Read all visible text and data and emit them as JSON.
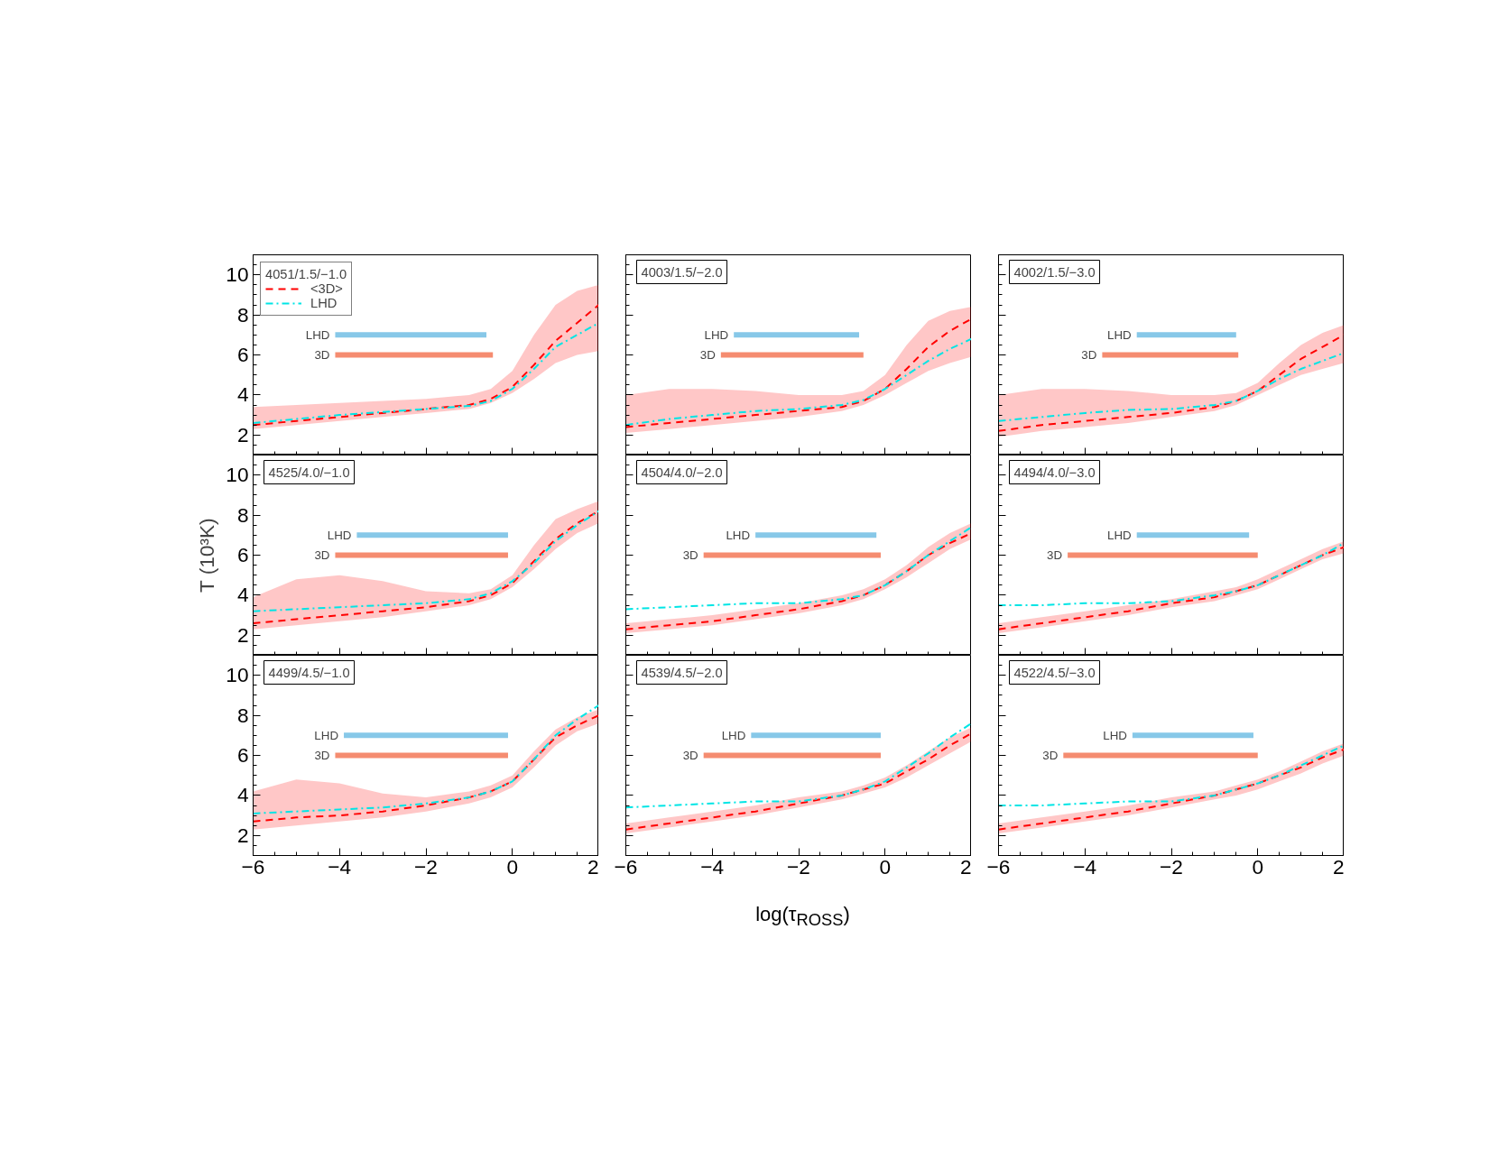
{
  "chart_data": [
    {
      "type": "line",
      "legend_title": "4051/1.5/−1.0",
      "x": [
        -6,
        -5,
        -4,
        -3,
        -2,
        -1,
        -0.5,
        0,
        0.5,
        1,
        1.5,
        2
      ],
      "xlim": [
        -6,
        2
      ],
      "ylim": [
        1,
        11
      ],
      "xticks": [
        -6,
        -4,
        -2,
        0,
        2
      ],
      "yticks": [
        2,
        4,
        6,
        8,
        10
      ],
      "tick_labels": "y",
      "legend": "top left",
      "series": [
        {
          "name": "<3D>",
          "color": "#ff0000",
          "line_style": "dashed",
          "values": [
            2.5,
            2.7,
            2.9,
            3.1,
            3.3,
            3.5,
            3.8,
            4.4,
            5.5,
            6.7,
            7.6,
            8.5
          ],
          "lower": [
            2.3,
            2.5,
            2.7,
            2.9,
            3.1,
            3.3,
            3.6,
            4.1,
            4.8,
            5.6,
            6.0,
            6.2
          ],
          "upper": [
            3.4,
            3.5,
            3.6,
            3.7,
            3.8,
            4.0,
            4.3,
            5.2,
            7.0,
            8.5,
            9.2,
            9.5
          ]
        },
        {
          "name": "LHD",
          "color": "#00e5e5",
          "line_style": "dashdot",
          "values": [
            2.6,
            2.8,
            3.0,
            3.15,
            3.3,
            3.45,
            3.7,
            4.3,
            5.3,
            6.4,
            7.0,
            7.6
          ]
        },
        {
          "name": "LHD",
          "x": [
            -4.1,
            -0.6
          ],
          "values": [
            7,
            7
          ],
          "color": "#87c8e8"
        },
        {
          "name": "3D",
          "x": [
            -4.1,
            -0.45
          ],
          "values": [
            6,
            6
          ],
          "color": "#f58c70"
        }
      ]
    },
    {
      "type": "line",
      "title": "4003/1.5/−2.0",
      "x": [
        -6,
        -5,
        -4,
        -3,
        -2,
        -1,
        -0.5,
        0,
        0.5,
        1,
        1.5,
        2
      ],
      "xlim": [
        -6,
        2
      ],
      "ylim": [
        1,
        11
      ],
      "xticks": [
        -6,
        -4,
        -2,
        0,
        2
      ],
      "yticks": [
        2,
        4,
        6,
        8,
        10
      ],
      "tick_labels": false,
      "series": [
        {
          "color": "#ff0000",
          "line_style": "dashed",
          "values": [
            2.4,
            2.6,
            2.8,
            3.0,
            3.2,
            3.4,
            3.7,
            4.3,
            5.3,
            6.4,
            7.2,
            7.8
          ],
          "lower": [
            2.1,
            2.3,
            2.5,
            2.7,
            2.9,
            3.2,
            3.5,
            4.0,
            4.6,
            5.2,
            5.6,
            5.9
          ],
          "upper": [
            4.0,
            4.3,
            4.3,
            4.2,
            4.0,
            4.0,
            4.2,
            5.0,
            6.5,
            7.7,
            8.2,
            8.4
          ]
        },
        {
          "color": "#00e5e5",
          "line_style": "dashdot",
          "values": [
            2.5,
            2.8,
            3.0,
            3.2,
            3.3,
            3.5,
            3.75,
            4.3,
            5.0,
            5.7,
            6.3,
            6.8
          ]
        },
        {
          "name": "LHD",
          "x": [
            -3.5,
            -0.6
          ],
          "values": [
            7,
            7
          ],
          "color": "#87c8e8"
        },
        {
          "name": "3D",
          "x": [
            -3.8,
            -0.5
          ],
          "values": [
            6,
            6
          ],
          "color": "#f58c70"
        }
      ]
    },
    {
      "type": "line",
      "title": "4002/1.5/−3.0",
      "x": [
        -6,
        -5,
        -4,
        -3,
        -2,
        -1,
        -0.5,
        0,
        0.5,
        1,
        1.5,
        2
      ],
      "xlim": [
        -6,
        2
      ],
      "ylim": [
        1,
        11
      ],
      "xticks": [
        -6,
        -4,
        -2,
        0,
        2
      ],
      "yticks": [
        2,
        4,
        6,
        8,
        10
      ],
      "tick_labels": false,
      "series": [
        {
          "color": "#ff0000",
          "line_style": "dashed",
          "values": [
            2.2,
            2.5,
            2.7,
            2.9,
            3.1,
            3.4,
            3.7,
            4.2,
            5.0,
            5.8,
            6.4,
            7.0
          ],
          "lower": [
            1.9,
            2.2,
            2.4,
            2.6,
            2.9,
            3.2,
            3.5,
            4.0,
            4.5,
            5.0,
            5.3,
            5.6
          ],
          "upper": [
            4.0,
            4.3,
            4.3,
            4.2,
            4.0,
            4.0,
            4.1,
            4.6,
            5.6,
            6.5,
            7.1,
            7.5
          ]
        },
        {
          "color": "#00e5e5",
          "line_style": "dashdot",
          "values": [
            2.7,
            2.9,
            3.1,
            3.25,
            3.3,
            3.5,
            3.7,
            4.2,
            4.8,
            5.3,
            5.7,
            6.1
          ]
        },
        {
          "name": "LHD",
          "x": [
            -2.8,
            -0.5
          ],
          "values": [
            7,
            7
          ],
          "color": "#87c8e8"
        },
        {
          "name": "3D",
          "x": [
            -3.6,
            -0.45
          ],
          "values": [
            6,
            6
          ],
          "color": "#f58c70"
        }
      ]
    },
    {
      "type": "line",
      "title": "4525/4.0/−1.0",
      "ylabel": "T (10³K)",
      "x": [
        -6,
        -5,
        -4,
        -3,
        -2,
        -1,
        -0.5,
        0,
        0.5,
        1,
        1.5,
        2
      ],
      "xlim": [
        -6,
        2
      ],
      "ylim": [
        1,
        11
      ],
      "xticks": [
        -6,
        -4,
        -2,
        0,
        2
      ],
      "yticks": [
        2,
        4,
        6,
        8,
        10
      ],
      "tick_labels": "y",
      "series": [
        {
          "color": "#ff0000",
          "line_style": "dashed",
          "values": [
            2.6,
            2.8,
            3.0,
            3.2,
            3.4,
            3.7,
            4.0,
            4.6,
            5.7,
            6.8,
            7.6,
            8.2
          ],
          "lower": [
            2.3,
            2.5,
            2.7,
            2.9,
            3.2,
            3.5,
            3.8,
            4.4,
            5.3,
            6.3,
            7.1,
            7.6
          ],
          "upper": [
            3.9,
            4.8,
            5.0,
            4.7,
            4.2,
            4.1,
            4.3,
            5.0,
            6.5,
            7.8,
            8.3,
            8.7
          ]
        },
        {
          "color": "#00e5e5",
          "line_style": "dashdot",
          "values": [
            3.2,
            3.3,
            3.4,
            3.5,
            3.6,
            3.8,
            4.1,
            4.7,
            5.6,
            6.7,
            7.5,
            8.2
          ]
        },
        {
          "name": "LHD",
          "x": [
            -3.6,
            -0.1
          ],
          "values": [
            7,
            7
          ],
          "color": "#87c8e8"
        },
        {
          "name": "3D",
          "x": [
            -4.1,
            -0.1
          ],
          "values": [
            6,
            6
          ],
          "color": "#f58c70"
        }
      ]
    },
    {
      "type": "line",
      "title": "4504/4.0/−2.0",
      "x": [
        -6,
        -5,
        -4,
        -3,
        -2,
        -1,
        -0.5,
        0,
        0.5,
        1,
        1.5,
        2
      ],
      "xlim": [
        -6,
        2
      ],
      "ylim": [
        1,
        11
      ],
      "xticks": [
        -6,
        -4,
        -2,
        0,
        2
      ],
      "yticks": [
        2,
        4,
        6,
        8,
        10
      ],
      "tick_labels": false,
      "series": [
        {
          "color": "#ff0000",
          "line_style": "dashed",
          "values": [
            2.3,
            2.5,
            2.7,
            3.0,
            3.3,
            3.7,
            4.0,
            4.5,
            5.2,
            6.0,
            6.6,
            7.1
          ],
          "lower": [
            2.1,
            2.3,
            2.5,
            2.8,
            3.1,
            3.5,
            3.8,
            4.3,
            4.9,
            5.6,
            6.3,
            6.8
          ],
          "upper": [
            2.6,
            2.8,
            3.0,
            3.3,
            3.6,
            4.0,
            4.3,
            4.8,
            5.5,
            6.4,
            7.1,
            7.6
          ]
        },
        {
          "color": "#00e5e5",
          "line_style": "dashdot",
          "values": [
            3.3,
            3.4,
            3.5,
            3.6,
            3.6,
            3.8,
            4.0,
            4.5,
            5.2,
            6.0,
            6.7,
            7.4
          ]
        },
        {
          "name": "LHD",
          "x": [
            -3.0,
            -0.2
          ],
          "values": [
            7,
            7
          ],
          "color": "#87c8e8"
        },
        {
          "name": "3D",
          "x": [
            -4.2,
            -0.1
          ],
          "values": [
            6,
            6
          ],
          "color": "#f58c70"
        }
      ]
    },
    {
      "type": "line",
      "title": "4494/4.0/−3.0",
      "x": [
        -6,
        -5,
        -4,
        -3,
        -2,
        -1,
        -0.5,
        0,
        0.5,
        1,
        1.5,
        2
      ],
      "xlim": [
        -6,
        2
      ],
      "ylim": [
        1,
        11
      ],
      "xticks": [
        -6,
        -4,
        -2,
        0,
        2
      ],
      "yticks": [
        2,
        4,
        6,
        8,
        10
      ],
      "tick_labels": false,
      "series": [
        {
          "color": "#ff0000",
          "line_style": "dashed",
          "values": [
            2.3,
            2.6,
            2.9,
            3.2,
            3.6,
            3.9,
            4.2,
            4.5,
            5.0,
            5.5,
            6.0,
            6.4
          ],
          "lower": [
            2.1,
            2.4,
            2.7,
            3.0,
            3.4,
            3.7,
            4.0,
            4.3,
            4.8,
            5.3,
            5.8,
            6.1
          ],
          "upper": [
            2.6,
            2.9,
            3.2,
            3.5,
            3.8,
            4.2,
            4.4,
            4.8,
            5.3,
            5.8,
            6.3,
            6.7
          ]
        },
        {
          "color": "#00e5e5",
          "line_style": "dashdot",
          "values": [
            3.5,
            3.5,
            3.6,
            3.6,
            3.7,
            4.0,
            4.2,
            4.5,
            5.0,
            5.5,
            6.0,
            6.6
          ]
        },
        {
          "name": "LHD",
          "x": [
            -2.8,
            -0.2
          ],
          "values": [
            7,
            7
          ],
          "color": "#87c8e8"
        },
        {
          "name": "3D",
          "x": [
            -4.4,
            0
          ],
          "values": [
            6,
            6
          ],
          "color": "#f58c70"
        }
      ]
    },
    {
      "type": "line",
      "title": "4499/4.5/−1.0",
      "x": [
        -6,
        -5,
        -4,
        -3,
        -2,
        -1,
        -0.5,
        0,
        0.5,
        1,
        1.5,
        2
      ],
      "xlim": [
        -6,
        2
      ],
      "ylim": [
        1,
        11
      ],
      "xticks": [
        {
          "value": -6,
          "label": "−6"
        },
        {
          "value": -4,
          "label": "−4"
        },
        {
          "value": -2,
          "label": "−2"
        },
        0,
        2
      ],
      "yticks": [
        2,
        4,
        6,
        8,
        10
      ],
      "series": [
        {
          "color": "#ff0000",
          "line_style": "dashed",
          "values": [
            2.7,
            2.9,
            3.0,
            3.2,
            3.5,
            3.9,
            4.2,
            4.7,
            5.8,
            6.9,
            7.5,
            8.0
          ],
          "lower": [
            2.3,
            2.5,
            2.7,
            2.9,
            3.2,
            3.6,
            3.9,
            4.4,
            5.4,
            6.5,
            7.2,
            7.6
          ],
          "upper": [
            4.2,
            4.8,
            4.6,
            4.1,
            3.9,
            4.2,
            4.5,
            5.0,
            6.2,
            7.3,
            7.9,
            8.3
          ]
        },
        {
          "color": "#00e5e5",
          "line_style": "dashdot",
          "values": [
            3.1,
            3.2,
            3.3,
            3.4,
            3.6,
            3.9,
            4.2,
            4.7,
            5.8,
            7.0,
            7.8,
            8.5
          ]
        },
        {
          "name": "LHD",
          "x": [
            -3.9,
            -0.1
          ],
          "values": [
            7,
            7
          ],
          "color": "#87c8e8"
        },
        {
          "name": "3D",
          "x": [
            -4.1,
            -0.1
          ],
          "values": [
            6,
            6
          ],
          "color": "#f58c70"
        }
      ]
    },
    {
      "type": "line",
      "title": "4539/4.5/−2.0",
      "xlabel": "log(τ$_{ROSS}$)",
      "x": [
        -6,
        -5,
        -4,
        -3,
        -2,
        -1,
        -0.5,
        0,
        0.5,
        1,
        1.5,
        2
      ],
      "xlim": [
        -6,
        2
      ],
      "ylim": [
        1,
        11
      ],
      "xticks": [
        {
          "value": -6,
          "label": "−6"
        },
        {
          "value": -4,
          "label": "−4"
        },
        {
          "value": -2,
          "label": "−2"
        },
        0,
        2
      ],
      "yticks": [
        2,
        4,
        6,
        8,
        10
      ],
      "tick_labels": "x",
      "series": [
        {
          "color": "#ff0000",
          "line_style": "dashed",
          "values": [
            2.3,
            2.6,
            2.9,
            3.2,
            3.6,
            4.0,
            4.3,
            4.6,
            5.2,
            5.8,
            6.5,
            7.1
          ],
          "lower": [
            2.1,
            2.4,
            2.7,
            3.0,
            3.4,
            3.8,
            4.1,
            4.4,
            4.9,
            5.5,
            6.1,
            6.7
          ],
          "upper": [
            2.6,
            2.9,
            3.2,
            3.5,
            3.9,
            4.2,
            4.5,
            4.9,
            5.5,
            6.2,
            6.9,
            7.4
          ]
        },
        {
          "color": "#00e5e5",
          "line_style": "dashdot",
          "values": [
            3.4,
            3.5,
            3.6,
            3.7,
            3.7,
            4.0,
            4.3,
            4.7,
            5.4,
            6.1,
            6.9,
            7.6
          ]
        },
        {
          "name": "LHD",
          "x": [
            -3.1,
            -0.1
          ],
          "values": [
            7,
            7
          ],
          "color": "#87c8e8"
        },
        {
          "name": "3D",
          "x": [
            -4.2,
            -0.1
          ],
          "values": [
            6,
            6
          ],
          "color": "#f58c70"
        }
      ]
    },
    {
      "type": "line",
      "title": "4522/4.5/−3.0",
      "x": [
        -6,
        -5,
        -4,
        -3,
        -2,
        -1,
        -0.5,
        0,
        0.5,
        1,
        1.5,
        2
      ],
      "xlim": [
        -6,
        2
      ],
      "ylim": [
        1,
        11
      ],
      "xticks": [
        {
          "value": -6,
          "label": "−6"
        },
        {
          "value": -4,
          "label": "−4"
        },
        {
          "value": -2,
          "label": "−2"
        },
        0,
        2
      ],
      "yticks": [
        2,
        4,
        6,
        8,
        10
      ],
      "tick_labels": "x",
      "series": [
        {
          "color": "#ff0000",
          "line_style": "dashed",
          "values": [
            2.3,
            2.6,
            2.9,
            3.2,
            3.6,
            4.0,
            4.3,
            4.6,
            5.0,
            5.4,
            5.9,
            6.3
          ],
          "lower": [
            2.1,
            2.4,
            2.7,
            3.0,
            3.4,
            3.8,
            4.0,
            4.3,
            4.7,
            5.1,
            5.6,
            6.0
          ],
          "upper": [
            2.6,
            2.9,
            3.2,
            3.5,
            3.9,
            4.2,
            4.5,
            4.8,
            5.2,
            5.7,
            6.2,
            6.6
          ]
        },
        {
          "color": "#00e5e5",
          "line_style": "dashdot",
          "values": [
            3.5,
            3.5,
            3.6,
            3.7,
            3.7,
            4.0,
            4.3,
            4.6,
            5.0,
            5.5,
            6.0,
            6.5
          ]
        },
        {
          "name": "LHD",
          "x": [
            -2.9,
            -0.1
          ],
          "values": [
            7,
            7
          ],
          "color": "#87c8e8"
        },
        {
          "name": "3D",
          "x": [
            -4.5,
            0
          ],
          "values": [
            6,
            6
          ],
          "color": "#f58c70"
        }
      ]
    }
  ]
}
